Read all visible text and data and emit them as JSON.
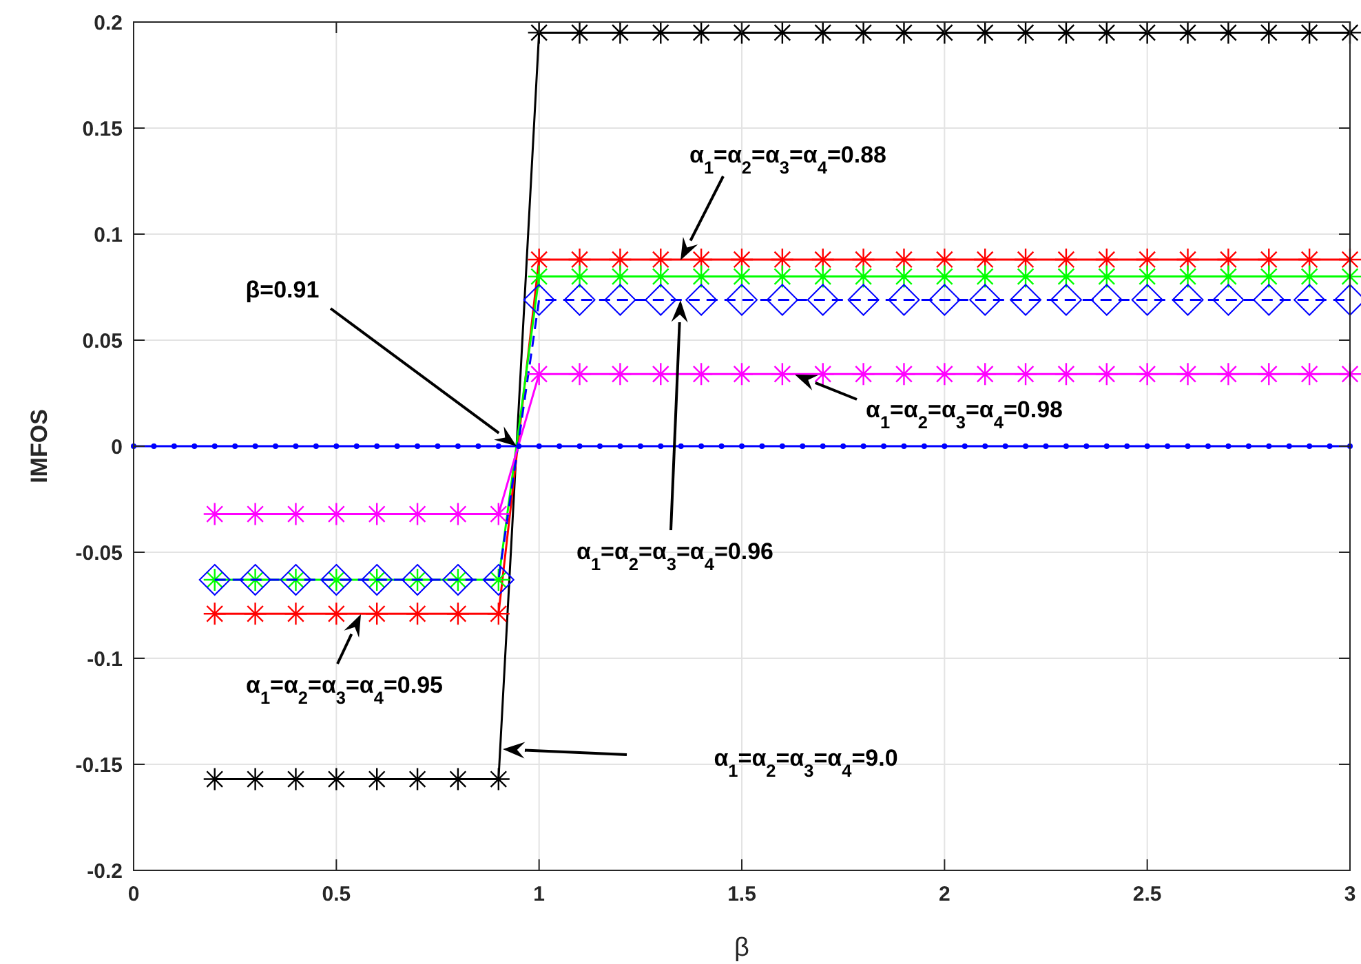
{
  "chart_data": {
    "type": "line",
    "xlabel": "β",
    "ylabel": "IMFOS",
    "xlim": [
      0,
      3
    ],
    "ylim": [
      -0.2,
      0.2
    ],
    "xticks": [
      0,
      0.5,
      1,
      1.5,
      2,
      2.5,
      3
    ],
    "yticks": [
      -0.2,
      -0.15,
      -0.1,
      -0.05,
      0,
      0.05,
      0.1,
      0.15,
      0.2
    ],
    "grid": true,
    "series": [
      {
        "color": "#000000",
        "marker": "cross",
        "line_style": "solid",
        "x": [
          0.2,
          0.3,
          0.4,
          0.5,
          0.6,
          0.7,
          0.8,
          0.9,
          1.0,
          1.1,
          1.2,
          1.3,
          1.4,
          1.5,
          1.6,
          1.7,
          1.8,
          1.9,
          2.0,
          2.1,
          2.2,
          2.3,
          2.4,
          2.5,
          2.6,
          2.7,
          2.8,
          2.9,
          3.0
        ],
        "values": [
          -0.157,
          -0.157,
          -0.157,
          -0.157,
          -0.157,
          -0.157,
          -0.157,
          -0.157,
          0.195,
          0.195,
          0.195,
          0.195,
          0.195,
          0.195,
          0.195,
          0.195,
          0.195,
          0.195,
          0.195,
          0.195,
          0.195,
          0.195,
          0.195,
          0.195,
          0.195,
          0.195,
          0.195,
          0.195,
          0.195
        ]
      },
      {
        "color": "#ff0000",
        "marker": "cross",
        "line_style": "solid",
        "x": [
          0.2,
          0.3,
          0.4,
          0.5,
          0.6,
          0.7,
          0.8,
          0.9,
          1.0,
          1.1,
          1.2,
          1.3,
          1.4,
          1.5,
          1.6,
          1.7,
          1.8,
          1.9,
          2.0,
          2.1,
          2.2,
          2.3,
          2.4,
          2.5,
          2.6,
          2.7,
          2.8,
          2.9,
          3.0
        ],
        "values": [
          -0.079,
          -0.079,
          -0.079,
          -0.079,
          -0.079,
          -0.079,
          -0.079,
          -0.079,
          0.088,
          0.088,
          0.088,
          0.088,
          0.088,
          0.088,
          0.088,
          0.088,
          0.088,
          0.088,
          0.088,
          0.088,
          0.088,
          0.088,
          0.088,
          0.088,
          0.088,
          0.088,
          0.088,
          0.088,
          0.088
        ]
      },
      {
        "color": "#00ff00",
        "marker": "cross",
        "line_style": "solid",
        "x": [
          0.2,
          0.3,
          0.4,
          0.5,
          0.6,
          0.7,
          0.8,
          0.9,
          1.0,
          1.1,
          1.2,
          1.3,
          1.4,
          1.5,
          1.6,
          1.7,
          1.8,
          1.9,
          2.0,
          2.1,
          2.2,
          2.3,
          2.4,
          2.5,
          2.6,
          2.7,
          2.8,
          2.9,
          3.0
        ],
        "values": [
          -0.063,
          -0.063,
          -0.063,
          -0.063,
          -0.063,
          -0.063,
          -0.063,
          -0.063,
          0.08,
          0.08,
          0.08,
          0.08,
          0.08,
          0.08,
          0.08,
          0.08,
          0.08,
          0.08,
          0.08,
          0.08,
          0.08,
          0.08,
          0.08,
          0.08,
          0.08,
          0.08,
          0.08,
          0.08,
          0.08
        ]
      },
      {
        "color": "#0000ff",
        "marker": "diamond",
        "line_style": "dashed",
        "x": [
          0.2,
          0.3,
          0.4,
          0.5,
          0.6,
          0.7,
          0.8,
          0.9,
          1.0,
          1.1,
          1.2,
          1.3,
          1.4,
          1.5,
          1.6,
          1.7,
          1.8,
          1.9,
          2.0,
          2.1,
          2.2,
          2.3,
          2.4,
          2.5,
          2.6,
          2.7,
          2.8,
          2.9,
          3.0
        ],
        "values": [
          -0.063,
          -0.063,
          -0.063,
          -0.063,
          -0.063,
          -0.063,
          -0.063,
          -0.063,
          0.069,
          0.069,
          0.069,
          0.069,
          0.069,
          0.069,
          0.069,
          0.069,
          0.069,
          0.069,
          0.069,
          0.069,
          0.069,
          0.069,
          0.069,
          0.069,
          0.069,
          0.069,
          0.069,
          0.069,
          0.069
        ]
      },
      {
        "color": "#ff00ff",
        "marker": "cross",
        "line_style": "solid",
        "x": [
          0.2,
          0.3,
          0.4,
          0.5,
          0.6,
          0.7,
          0.8,
          0.9,
          1.0,
          1.1,
          1.2,
          1.3,
          1.4,
          1.5,
          1.6,
          1.7,
          1.8,
          1.9,
          2.0,
          2.1,
          2.2,
          2.3,
          2.4,
          2.5,
          2.6,
          2.7,
          2.8,
          2.9,
          3.0
        ],
        "values": [
          -0.032,
          -0.032,
          -0.032,
          -0.032,
          -0.032,
          -0.032,
          -0.032,
          -0.032,
          0.034,
          0.034,
          0.034,
          0.034,
          0.034,
          0.034,
          0.034,
          0.034,
          0.034,
          0.034,
          0.034,
          0.034,
          0.034,
          0.034,
          0.034,
          0.034,
          0.034,
          0.034,
          0.034,
          0.034,
          0.034
        ]
      },
      {
        "color": "#0000ff",
        "marker": "circle",
        "line_style": "solid",
        "x": [
          0,
          0.05,
          0.1,
          0.15,
          0.2,
          0.25,
          0.3,
          0.35,
          0.4,
          0.45,
          0.5,
          0.55,
          0.6,
          0.65,
          0.7,
          0.75,
          0.8,
          0.85,
          0.9,
          0.95,
          1.0,
          1.05,
          1.1,
          1.15,
          1.2,
          1.25,
          1.3,
          1.35,
          1.4,
          1.45,
          1.5,
          1.55,
          1.6,
          1.65,
          1.7,
          1.75,
          1.8,
          1.85,
          1.9,
          1.95,
          2.0,
          2.05,
          2.1,
          2.15,
          2.2,
          2.25,
          2.3,
          2.35,
          2.4,
          2.45,
          2.5,
          2.55,
          2.6,
          2.65,
          2.7,
          2.75,
          2.8,
          2.85,
          2.9,
          2.95,
          3.0
        ],
        "values": [
          0,
          0,
          0,
          0,
          0,
          0,
          0,
          0,
          0,
          0,
          0,
          0,
          0,
          0,
          0,
          0,
          0,
          0,
          0,
          0,
          0,
          0,
          0,
          0,
          0,
          0,
          0,
          0,
          0,
          0,
          0,
          0,
          0,
          0,
          0,
          0,
          0,
          0,
          0,
          0,
          0,
          0,
          0,
          0,
          0,
          0,
          0,
          0,
          0,
          0,
          0,
          0,
          0,
          0,
          0,
          0,
          0,
          0,
          0,
          0,
          0
        ]
      }
    ],
    "annotations": [
      "β=0.91",
      "α$_{1}$=α$_{2}$=α$_{3}$=α$_{4}$=0.88",
      "α$_{1}$=α$_{2}$=α$_{3}$=α$_{4}$=0.98",
      "α$_{1}$=α$_{2}$=α$_{3}$=α$_{4}$=0.96",
      "α$_{1}$=α$_{2}$=α$_{3}$=α$_{4}$=0.95",
      "α$_{1}$=α$_{2}$=α$_{3}$=α$_{4}$=9.0"
    ]
  }
}
